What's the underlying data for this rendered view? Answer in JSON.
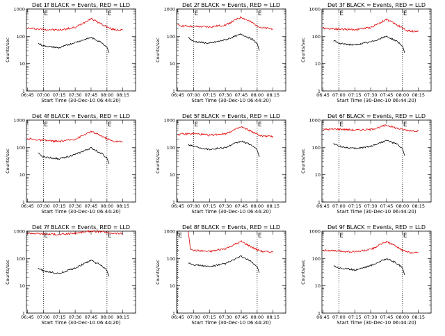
{
  "colors": {
    "events": "#000000",
    "lld": "#e00000",
    "axis": "#000000",
    "background": "#ffffff"
  },
  "chart_data": [
    {
      "type": "line",
      "title": "Det 1f BLACK = Events, RED = LLD",
      "xlabel": "Start Time (30-Dec-10 06:44:20)",
      "ylabel": "Counts/sec",
      "x_ticks": [
        "06:45",
        "07:00",
        "07:15",
        "07:30",
        "07:45",
        "08:00",
        "08:15"
      ],
      "y_ticks": [
        "1",
        "10",
        "100",
        "1000"
      ],
      "y_scale": "log",
      "ylim": [
        1,
        1000
      ],
      "markers": [
        "E",
        "E"
      ],
      "marker_times": [
        "07:00",
        "08:00"
      ],
      "series": [
        {
          "color": "#e00000",
          "x": [
            "06:45",
            "07:00",
            "07:15",
            "07:30",
            "07:45",
            "07:55",
            "08:00",
            "08:05",
            "08:15"
          ],
          "values": [
            200,
            180,
            170,
            210,
            450,
            280,
            220,
            180,
            170
          ]
        },
        {
          "color": "#000000",
          "x": [
            "06:55",
            "07:00",
            "07:15",
            "07:30",
            "07:45",
            "07:55",
            "08:00",
            "08:02"
          ],
          "values": [
            55,
            45,
            38,
            60,
            90,
            60,
            40,
            25
          ]
        }
      ]
    },
    {
      "type": "line",
      "title": "Det 2f BLACK = Events, RED = LLD",
      "xlabel": "Start Time (30-Dec-10 06:44:20)",
      "ylabel": "Counts/sec",
      "x_ticks": [
        "06:45",
        "07:00",
        "07:15",
        "07:30",
        "07:45",
        "08:00",
        "08:15"
      ],
      "y_ticks": [
        "1",
        "10",
        "100",
        "1000"
      ],
      "y_scale": "log",
      "ylim": [
        1,
        1000
      ],
      "markers": [
        "E",
        "E"
      ],
      "marker_times": [
        "07:00",
        "08:00"
      ],
      "series": [
        {
          "color": "#e00000",
          "x": [
            "06:45",
            "07:00",
            "07:15",
            "07:30",
            "07:45",
            "07:55",
            "08:00",
            "08:05",
            "08:15"
          ],
          "values": [
            250,
            230,
            220,
            260,
            500,
            320,
            250,
            200,
            190
          ]
        },
        {
          "color": "#000000",
          "x": [
            "06:55",
            "07:00",
            "07:15",
            "07:30",
            "07:45",
            "07:55",
            "08:00",
            "08:02"
          ],
          "values": [
            90,
            65,
            55,
            75,
            120,
            80,
            55,
            30
          ]
        }
      ]
    },
    {
      "type": "line",
      "title": "Det 3f BLACK = Events, RED = LLD",
      "xlabel": "Start Time (30-Dec-10 06:44:20)",
      "ylabel": "Counts/sec",
      "x_ticks": [
        "06:45",
        "07:00",
        "07:15",
        "07:30",
        "07:45",
        "08:00",
        "08:15"
      ],
      "y_ticks": [
        "1",
        "10",
        "100",
        "1000"
      ],
      "y_scale": "log",
      "ylim": [
        1,
        1000
      ],
      "markers": [
        "E",
        "E"
      ],
      "marker_times": [
        "07:00",
        "08:00"
      ],
      "series": [
        {
          "color": "#e00000",
          "x": [
            "06:45",
            "07:00",
            "07:15",
            "07:30",
            "07:45",
            "07:55",
            "08:00",
            "08:05",
            "08:15"
          ],
          "values": [
            200,
            185,
            175,
            210,
            420,
            260,
            200,
            160,
            150
          ]
        },
        {
          "color": "#000000",
          "x": [
            "06:55",
            "07:00",
            "07:15",
            "07:30",
            "07:45",
            "07:55",
            "08:00",
            "08:02"
          ],
          "values": [
            70,
            55,
            48,
            62,
            100,
            65,
            45,
            25
          ]
        }
      ]
    },
    {
      "type": "line",
      "title": "Det 4f BLACK = Events, RED = LLD",
      "xlabel": "Start Time (30-Dec-10 06:44:20)",
      "ylabel": "Counts/sec",
      "x_ticks": [
        "06:45",
        "07:00",
        "07:15",
        "07:30",
        "07:45",
        "08:00",
        "08:15"
      ],
      "y_ticks": [
        "1",
        "10",
        "100",
        "1000"
      ],
      "y_scale": "log",
      "ylim": [
        1,
        1000
      ],
      "markers": [
        "E",
        "E"
      ],
      "marker_times": [
        "07:00",
        "08:00"
      ],
      "series": [
        {
          "color": "#e00000",
          "x": [
            "06:45",
            "07:00",
            "07:15",
            "07:30",
            "07:45",
            "07:55",
            "08:00",
            "08:05",
            "08:15"
          ],
          "values": [
            210,
            180,
            165,
            200,
            380,
            260,
            210,
            170,
            160
          ]
        },
        {
          "color": "#000000",
          "x": [
            "06:55",
            "07:00",
            "07:15",
            "07:30",
            "07:45",
            "07:55",
            "08:00",
            "08:02"
          ],
          "values": [
            60,
            45,
            38,
            55,
            95,
            60,
            40,
            25
          ]
        }
      ]
    },
    {
      "type": "line",
      "title": "Det 5f BLACK = Events, RED = LLD",
      "xlabel": "Start Time (30-Dec-10 06:44:20)",
      "ylabel": "Counts/sec",
      "x_ticks": [
        "06:45",
        "07:00",
        "07:15",
        "07:30",
        "07:45",
        "08:00",
        "08:15"
      ],
      "y_ticks": [
        "1",
        "10",
        "100",
        "1000"
      ],
      "y_scale": "log",
      "ylim": [
        1,
        1000
      ],
      "markers": [
        "E",
        "E"
      ],
      "marker_times": [
        "07:00",
        "08:00"
      ],
      "series": [
        {
          "color": "#e00000",
          "x": [
            "06:45",
            "07:00",
            "07:15",
            "07:30",
            "07:45",
            "07:55",
            "08:00",
            "08:05",
            "08:15"
          ],
          "values": [
            300,
            320,
            280,
            320,
            560,
            380,
            300,
            260,
            250
          ]
        },
        {
          "color": "#000000",
          "x": [
            "06:55",
            "07:00",
            "07:15",
            "07:30",
            "07:45",
            "07:55",
            "08:00",
            "08:02"
          ],
          "values": [
            130,
            110,
            85,
            100,
            170,
            120,
            80,
            45
          ]
        }
      ]
    },
    {
      "type": "line",
      "title": "Det 6f BLACK = Events, RED = LLD",
      "xlabel": "Start Time (30-Dec-10 06:44:20)",
      "ylabel": "Counts/sec",
      "x_ticks": [
        "06:45",
        "07:00",
        "07:15",
        "07:30",
        "07:45",
        "08:00",
        "08:15"
      ],
      "y_ticks": [
        "1",
        "10",
        "100",
        "1000"
      ],
      "y_scale": "log",
      "ylim": [
        1,
        1000
      ],
      "markers": [
        "E",
        "E"
      ],
      "marker_times": [
        "07:00",
        "08:00"
      ],
      "series": [
        {
          "color": "#e00000",
          "x": [
            "06:45",
            "07:00",
            "07:15",
            "07:30",
            "07:45",
            "07:55",
            "08:00",
            "08:05",
            "08:15"
          ],
          "values": [
            450,
            470,
            430,
            450,
            650,
            500,
            450,
            420,
            400
          ]
        },
        {
          "color": "#000000",
          "x": [
            "06:55",
            "07:00",
            "07:15",
            "07:30",
            "07:45",
            "07:55",
            "08:00",
            "08:02"
          ],
          "values": [
            140,
            110,
            90,
            110,
            180,
            130,
            90,
            50
          ]
        }
      ]
    },
    {
      "type": "line",
      "title": "Det 7f BLACK = Events, RED = LLD",
      "xlabel": "Start Time (30-Dec-10 06:44:20)",
      "ylabel": "Counts/sec",
      "x_ticks": [
        "06:45",
        "07:00",
        "07:15",
        "07:30",
        "07:45",
        "08:00",
        "08:15"
      ],
      "y_ticks": [
        "1",
        "10",
        "100",
        "1000"
      ],
      "y_scale": "log",
      "ylim": [
        1,
        1000
      ],
      "markers": [
        "E",
        "E"
      ],
      "marker_times": [
        "07:00",
        "08:00"
      ],
      "series": [
        {
          "color": "#e00000",
          "x": [
            "06:45",
            "07:00",
            "07:15",
            "07:30",
            "07:45",
            "07:55",
            "08:00",
            "08:05",
            "08:15"
          ],
          "values": [
            850,
            800,
            750,
            850,
            1000,
            950,
            900,
            850,
            800
          ]
        },
        {
          "color": "#000000",
          "x": [
            "06:55",
            "07:00",
            "07:15",
            "07:30",
            "07:45",
            "07:55",
            "08:00",
            "08:02"
          ],
          "values": [
            45,
            35,
            28,
            45,
            85,
            55,
            35,
            22
          ]
        }
      ]
    },
    {
      "type": "line",
      "title": "Det 8f BLACK = Events, RED = LLD",
      "xlabel": "Start Time (30-Dec-10 06:44:20)",
      "ylabel": "Counts/sec",
      "x_ticks": [
        "06:45",
        "07:00",
        "07:15",
        "07:30",
        "07:45",
        "08:00",
        "08:15"
      ],
      "y_ticks": [
        "1",
        "10",
        "100",
        "1000"
      ],
      "y_scale": "log",
      "ylim": [
        1,
        1000
      ],
      "markers": [
        "E",
        "E"
      ],
      "marker_times": [
        "06:45",
        "08:00"
      ],
      "series": [
        {
          "color": "#e00000",
          "x": [
            "06:55",
            "06:57",
            "07:00",
            "07:15",
            "07:30",
            "07:45",
            "07:55",
            "08:00",
            "08:05",
            "08:15"
          ],
          "values": [
            1000,
            220,
            200,
            180,
            230,
            420,
            260,
            210,
            180,
            170
          ]
        },
        {
          "color": "#000000",
          "x": [
            "06:55",
            "07:00",
            "07:15",
            "07:30",
            "07:45",
            "07:55",
            "08:00",
            "08:02"
          ],
          "values": [
            70,
            60,
            50,
            65,
            120,
            75,
            50,
            30
          ]
        }
      ]
    },
    {
      "type": "line",
      "title": "Det 9f BLACK = Events, RED = LLD",
      "xlabel": "Start Time (30-Dec-10 06:44:20)",
      "ylabel": "Counts/sec",
      "x_ticks": [
        "06:45",
        "07:00",
        "07:15",
        "07:30",
        "07:45",
        "08:00",
        "08:15"
      ],
      "y_ticks": [
        "1",
        "10",
        "100",
        "1000"
      ],
      "y_scale": "log",
      "ylim": [
        1,
        1000
      ],
      "markers": [
        "E",
        "E"
      ],
      "marker_times": [
        "07:00",
        "08:00"
      ],
      "series": [
        {
          "color": "#e00000",
          "x": [
            "06:45",
            "07:00",
            "07:15",
            "07:30",
            "07:45",
            "07:55",
            "08:00",
            "08:05",
            "08:15"
          ],
          "values": [
            200,
            185,
            175,
            210,
            420,
            260,
            200,
            170,
            160
          ]
        },
        {
          "color": "#000000",
          "x": [
            "06:55",
            "07:00",
            "07:15",
            "07:30",
            "07:45",
            "07:55",
            "08:00",
            "08:02"
          ],
          "values": [
            55,
            45,
            38,
            55,
            100,
            65,
            45,
            25
          ]
        }
      ]
    }
  ]
}
